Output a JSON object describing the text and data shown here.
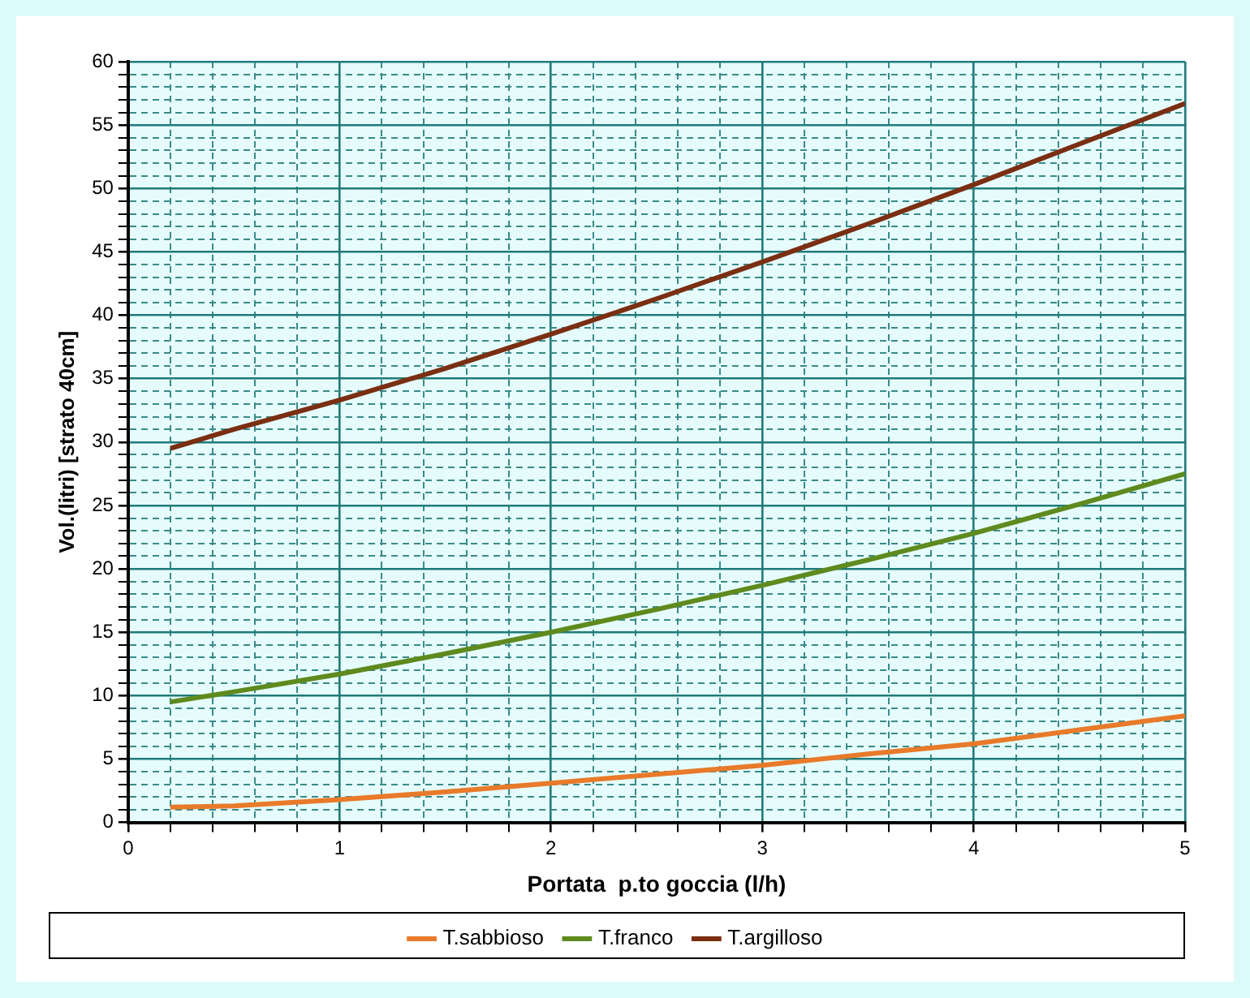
{
  "chart_data": {
    "type": "line",
    "xlabel": "Portata  p.to goccia (l/h)",
    "ylabel": "Vol.(litri) [strato 40cm]",
    "xlim": [
      0,
      5
    ],
    "xticks": [
      0,
      {
        "value": 0.2,
        "label": null
      },
      {
        "value": 0.4,
        "label": null
      },
      {
        "value": 0.6,
        "label": null
      },
      {
        "value": 0.8,
        "label": null
      },
      1,
      {
        "value": 1.2,
        "label": null
      },
      {
        "value": 1.4,
        "label": null
      },
      {
        "value": 1.6,
        "label": null
      },
      {
        "value": 1.8,
        "label": null
      },
      2,
      {
        "value": 2.2,
        "label": null
      },
      {
        "value": 2.4,
        "label": null
      },
      {
        "value": 2.6,
        "label": null
      },
      {
        "value": 2.8,
        "label": null
      },
      3,
      {
        "value": 3.2,
        "label": null
      },
      {
        "value": 3.4,
        "label": null
      },
      {
        "value": 3.6,
        "label": null
      },
      {
        "value": 3.8,
        "label": null
      },
      4,
      {
        "value": 4.2,
        "label": null
      },
      {
        "value": 4.4,
        "label": null
      },
      {
        "value": 4.6,
        "label": null
      },
      {
        "value": 4.8,
        "label": null
      },
      5
    ],
    "ylim": [
      0,
      60
    ],
    "yticks": [
      0,
      {
        "value": 1,
        "label": null
      },
      {
        "value": 2,
        "label": null
      },
      {
        "value": 3,
        "label": null
      },
      {
        "value": 4,
        "label": null
      },
      5,
      {
        "value": 6,
        "label": null
      },
      {
        "value": 7,
        "label": null
      },
      {
        "value": 8,
        "label": null
      },
      {
        "value": 9,
        "label": null
      },
      10,
      {
        "value": 11,
        "label": null
      },
      {
        "value": 12,
        "label": null
      },
      {
        "value": 13,
        "label": null
      },
      {
        "value": 14,
        "label": null
      },
      15,
      {
        "value": 16,
        "label": null
      },
      {
        "value": 17,
        "label": null
      },
      {
        "value": 18,
        "label": null
      },
      {
        "value": 19,
        "label": null
      },
      20,
      {
        "value": 21,
        "label": null
      },
      {
        "value": 22,
        "label": null
      },
      {
        "value": 23,
        "label": null
      },
      {
        "value": 24,
        "label": null
      },
      25,
      {
        "value": 26,
        "label": null
      },
      {
        "value": 27,
        "label": null
      },
      {
        "value": 28,
        "label": null
      },
      {
        "value": 29,
        "label": null
      },
      30,
      {
        "value": 31,
        "label": null
      },
      {
        "value": 32,
        "label": null
      },
      {
        "value": 33,
        "label": null
      },
      {
        "value": 34,
        "label": null
      },
      35,
      {
        "value": 36,
        "label": null
      },
      {
        "value": 37,
        "label": null
      },
      {
        "value": 38,
        "label": null
      },
      {
        "value": 39,
        "label": null
      },
      40,
      {
        "value": 41,
        "label": null
      },
      {
        "value": 42,
        "label": null
      },
      {
        "value": 43,
        "label": null
      },
      {
        "value": 44,
        "label": null
      },
      45,
      {
        "value": 46,
        "label": null
      },
      {
        "value": 47,
        "label": null
      },
      {
        "value": 48,
        "label": null
      },
      {
        "value": 49,
        "label": null
      },
      50,
      {
        "value": 51,
        "label": null
      },
      {
        "value": 52,
        "label": null
      },
      {
        "value": 53,
        "label": null
      },
      {
        "value": 54,
        "label": null
      },
      55,
      {
        "value": 56,
        "label": null
      },
      {
        "value": 57,
        "label": null
      },
      {
        "value": 58,
        "label": null
      },
      {
        "value": 59,
        "label": null
      },
      60
    ],
    "x": [
      0.2,
      0.5,
      1,
      1.5,
      2,
      2.5,
      3,
      3.5,
      4,
      4.5,
      5
    ],
    "series": [
      {
        "name": "T.sabbioso",
        "color": "#e87a2a",
        "values": [
          1.2,
          1.3,
          1.8,
          2.4,
          3.1,
          3.8,
          4.5,
          5.4,
          6.2,
          7.3,
          8.4
        ]
      },
      {
        "name": "T.franco",
        "color": "#5e8a1e",
        "values": [
          9.5,
          10.3,
          11.7,
          13.3,
          15,
          16.8,
          18.7,
          20.7,
          22.8,
          25.1,
          27.5
        ]
      },
      {
        "name": "T.argilloso",
        "color": "#7a2e12",
        "values": [
          29.5,
          31,
          33.3,
          35.8,
          38.5,
          41.3,
          44.2,
          47.2,
          50.3,
          53.5,
          56.7
        ]
      }
    ],
    "grid": true,
    "legend": "bottom",
    "marker": "none",
    "line_style": "solid"
  }
}
